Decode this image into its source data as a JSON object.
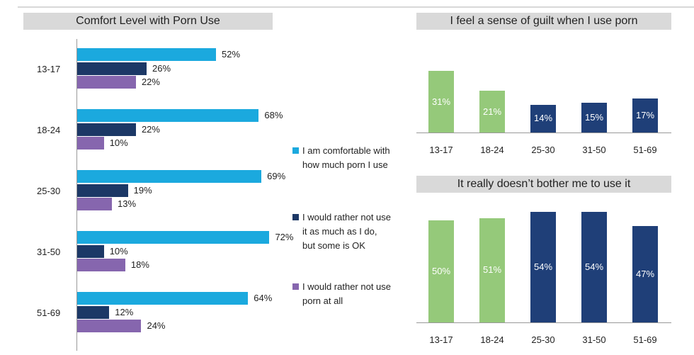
{
  "colors": {
    "comfortable": "#1ba9de",
    "rather_not_some_ok": "#1c3866",
    "rather_not_at_all": "#8666ae",
    "young": "#95c97a",
    "older": "#1f3f78"
  },
  "chart_data": [
    {
      "type": "bar",
      "orientation": "horizontal",
      "title": "Comfort Level with Porn Use",
      "categories": [
        "13-17",
        "18-24",
        "25-30",
        "31-50",
        "51-69"
      ],
      "series": [
        {
          "name": "I am comfortable with how much porn I use",
          "values": [
            52,
            68,
            69,
            72,
            64
          ],
          "labels": [
            "52%",
            "68%",
            "69%",
            "72%",
            "64%"
          ]
        },
        {
          "name": "I would rather not use it as much as I do, but some is OK",
          "values": [
            26,
            22,
            19,
            10,
            12
          ],
          "labels": [
            "26%",
            "22%",
            "19%",
            "10%",
            "12%"
          ]
        },
        {
          "name": "I would rather not use porn at all",
          "values": [
            22,
            10,
            13,
            18,
            24
          ],
          "labels": [
            "22%",
            "10%",
            "13%",
            "18%",
            "24%"
          ]
        }
      ],
      "legend": "right",
      "unit": "%"
    },
    {
      "type": "bar",
      "title": "I feel a sense of guilt when I use porn",
      "categories": [
        "13-17",
        "18-24",
        "25-30",
        "31-50",
        "51-69"
      ],
      "values": [
        31,
        21,
        14,
        15,
        17
      ],
      "labels": [
        "31%",
        "21%",
        "14%",
        "15%",
        "17%"
      ],
      "unit": "%"
    },
    {
      "type": "bar",
      "title": "It really doesn’t bother me to use it",
      "categories": [
        "13-17",
        "18-24",
        "25-30",
        "31-50",
        "51-69"
      ],
      "values": [
        50,
        51,
        54,
        54,
        47
      ],
      "labels": [
        "50%",
        "51%",
        "54%",
        "54%",
        "47%"
      ],
      "unit": "%"
    }
  ]
}
